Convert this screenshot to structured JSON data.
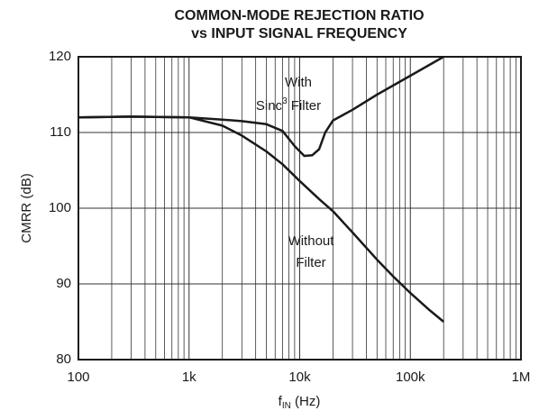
{
  "chart_data": {
    "type": "line",
    "title": [
      "COMMON-MODE REJECTION RATIO",
      "vs INPUT SIGNAL FREQUENCY"
    ],
    "x_label": {
      "base": "f",
      "sub": "IN",
      "rest": " (Hz)"
    },
    "y_label": "CMRR (dB)",
    "x_scale": "log",
    "xlim": [
      100,
      1000000
    ],
    "xticks": [
      100,
      {
        "value": 1000,
        "label": "1k"
      },
      {
        "value": 10000,
        "label": "10k"
      },
      {
        "value": 100000,
        "label": "100k"
      },
      {
        "value": 1000000,
        "label": "1M"
      }
    ],
    "ylim": [
      80,
      120
    ],
    "yticks": [
      80,
      90,
      100,
      110,
      120
    ],
    "grid": true,
    "series": [
      {
        "color": "#1a1a1a",
        "x": [
          100,
          300,
          1000,
          2000,
          3000,
          5000,
          7000,
          9000,
          11000,
          13000,
          15000,
          17000,
          20000,
          30000,
          50000,
          100000,
          200000
        ],
        "values": [
          112,
          112.1,
          112,
          111.7,
          111.5,
          111.1,
          110.2,
          108.2,
          106.9,
          107,
          107.8,
          110,
          111.6,
          113,
          115,
          117.5,
          120
        ]
      },
      {
        "color": "#1a1a1a",
        "x": [
          100,
          300,
          1000,
          2000,
          3000,
          5000,
          7000,
          10000,
          15000,
          20000,
          30000,
          50000,
          70000,
          100000,
          150000,
          200000
        ],
        "values": [
          112,
          112.1,
          112,
          110.9,
          109.6,
          107.5,
          105.8,
          103.6,
          101.2,
          99.6,
          96.8,
          93.2,
          91,
          88.8,
          86.5,
          85
        ]
      }
    ],
    "annotations": [
      {
        "lines": [
          {
            "text": "With"
          },
          {
            "text": "Sinc",
            "sup": "3",
            "rest": " Filter"
          }
        ]
      },
      {
        "lines": [
          {
            "text": "Without"
          },
          {
            "text": "Filter"
          }
        ]
      }
    ]
  }
}
